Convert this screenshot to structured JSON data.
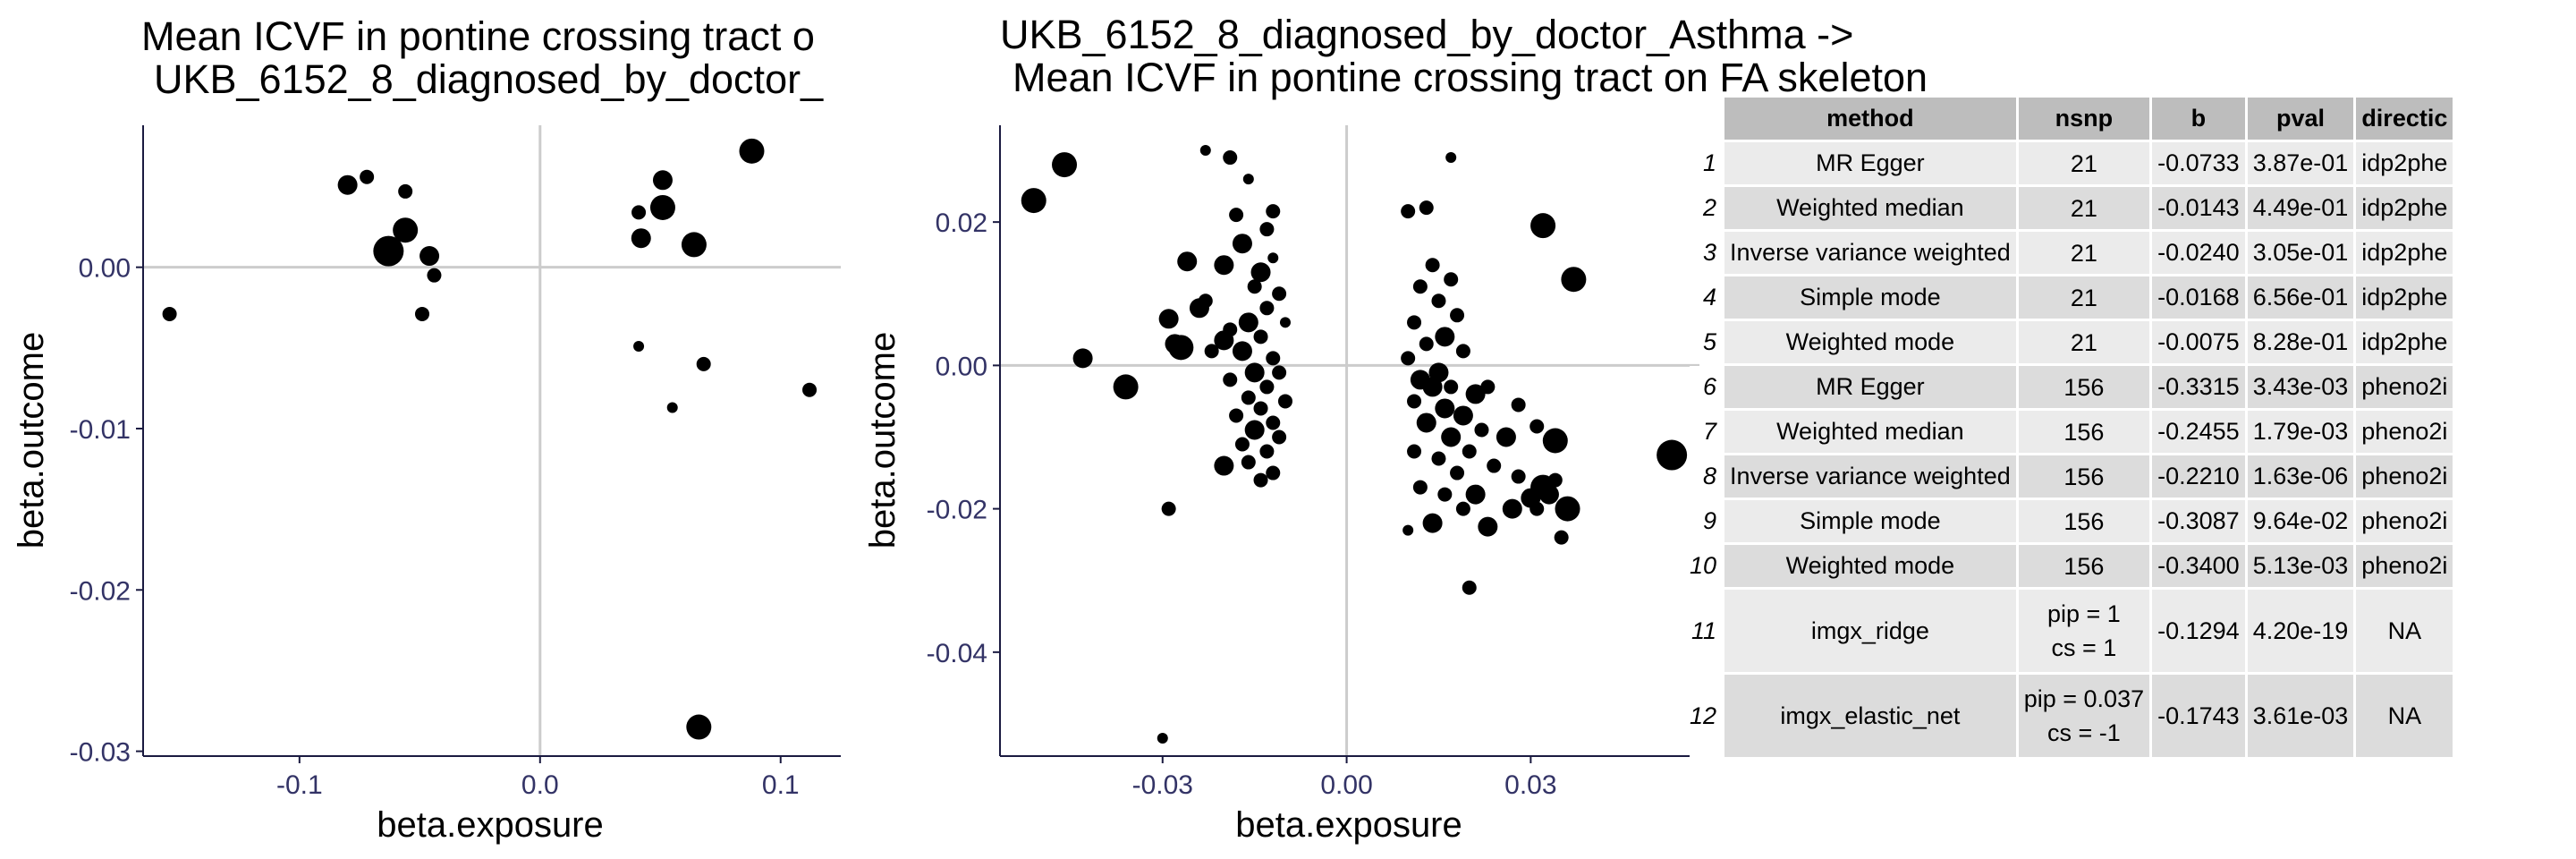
{
  "colors": {
    "point": "#000000",
    "refline": "#cccccc",
    "axis": "#1a1a40",
    "tick_text": "#333366",
    "header_bg": "#bdbdbd",
    "row_odd": "#ebebeb",
    "row_even": "#dcdcdc"
  },
  "chart_data": [
    {
      "type": "scatter",
      "title_lines": [
        "Mean ICVF in pontine crossing tract o",
        "UKB_6152_8_diagnosed_by_doctor_"
      ],
      "xlabel": "beta.exposure",
      "ylabel": "beta.outcome",
      "xlim": [
        -0.165,
        0.125
      ],
      "ylim": [
        -0.0303,
        0.0088
      ],
      "xticks": [
        -0.1,
        0.0,
        0.1
      ],
      "xtick_labels": [
        "-0.1",
        "0.0",
        "0.1"
      ],
      "yticks": [
        -0.03,
        -0.02,
        -0.01,
        0.0
      ],
      "ytick_labels": [
        "-0.03",
        "-0.02",
        "-0.01",
        "0.00"
      ],
      "reference_lines": {
        "x": 0,
        "y": 0
      },
      "grid": false,
      "points": [
        {
          "x": -0.154,
          "y": -0.0029,
          "s": 1
        },
        {
          "x": -0.08,
          "y": 0.0051,
          "s": 2
        },
        {
          "x": -0.072,
          "y": 0.0056,
          "s": 1
        },
        {
          "x": -0.063,
          "y": 0.001,
          "s": 4
        },
        {
          "x": -0.056,
          "y": 0.0023,
          "s": 3
        },
        {
          "x": -0.056,
          "y": 0.0047,
          "s": 1
        },
        {
          "x": -0.046,
          "y": 0.0007,
          "s": 2
        },
        {
          "x": -0.044,
          "y": -0.0005,
          "s": 1
        },
        {
          "x": -0.049,
          "y": -0.0029,
          "s": 1
        },
        {
          "x": 0.041,
          "y": 0.0034,
          "s": 1
        },
        {
          "x": 0.042,
          "y": 0.0018,
          "s": 2
        },
        {
          "x": 0.051,
          "y": 0.0054,
          "s": 2
        },
        {
          "x": 0.051,
          "y": 0.0037,
          "s": 3
        },
        {
          "x": 0.041,
          "y": -0.0049,
          "s": 0
        },
        {
          "x": 0.055,
          "y": -0.0087,
          "s": 0
        },
        {
          "x": 0.064,
          "y": 0.0014,
          "s": 3
        },
        {
          "x": 0.068,
          "y": -0.006,
          "s": 1
        },
        {
          "x": 0.088,
          "y": 0.0072,
          "s": 3
        },
        {
          "x": 0.112,
          "y": -0.0076,
          "s": 1
        },
        {
          "x": 0.066,
          "y": -0.0285,
          "s": 3
        }
      ]
    },
    {
      "type": "scatter",
      "title_lines": [
        "UKB_6152_8_diagnosed_by_doctor_Asthma ->",
        "Mean ICVF in pontine crossing tract on FA skeleton"
      ],
      "xlabel": "beta.exposure",
      "ylabel": "beta.outcome",
      "xlim": [
        -0.0565,
        0.0575
      ],
      "ylim": [
        -0.0545,
        0.0335
      ],
      "xticks": [
        -0.03,
        0.0,
        0.03
      ],
      "xtick_labels": [
        "-0.03",
        "0.00",
        "0.03"
      ],
      "yticks": [
        -0.04,
        -0.02,
        0.0,
        0.02
      ],
      "ytick_labels": [
        "-0.04",
        "-0.02",
        "0.00",
        "0.02"
      ],
      "reference_lines": {
        "x": 0,
        "y": 0
      },
      "grid": false,
      "points": [
        {
          "x": -0.051,
          "y": 0.023,
          "s": 3
        },
        {
          "x": -0.046,
          "y": 0.028,
          "s": 3
        },
        {
          "x": -0.043,
          "y": 0.001,
          "s": 2
        },
        {
          "x": -0.036,
          "y": -0.003,
          "s": 3
        },
        {
          "x": -0.03,
          "y": -0.052,
          "s": 0
        },
        {
          "x": -0.029,
          "y": -0.02,
          "s": 1
        },
        {
          "x": -0.029,
          "y": 0.0065,
          "s": 2
        },
        {
          "x": -0.028,
          "y": 0.003,
          "s": 2
        },
        {
          "x": -0.027,
          "y": 0.0025,
          "s": 3
        },
        {
          "x": -0.026,
          "y": 0.0145,
          "s": 2
        },
        {
          "x": -0.024,
          "y": 0.008,
          "s": 2
        },
        {
          "x": -0.023,
          "y": 0.009,
          "s": 1
        },
        {
          "x": -0.023,
          "y": 0.03,
          "s": 0
        },
        {
          "x": -0.022,
          "y": 0.002,
          "s": 1
        },
        {
          "x": -0.02,
          "y": 0.014,
          "s": 2
        },
        {
          "x": -0.02,
          "y": 0.0035,
          "s": 2
        },
        {
          "x": -0.02,
          "y": -0.014,
          "s": 2
        },
        {
          "x": -0.019,
          "y": 0.029,
          "s": 1
        },
        {
          "x": -0.019,
          "y": 0.005,
          "s": 1
        },
        {
          "x": -0.019,
          "y": -0.002,
          "s": 1
        },
        {
          "x": -0.018,
          "y": -0.007,
          "s": 1
        },
        {
          "x": -0.018,
          "y": 0.021,
          "s": 1
        },
        {
          "x": -0.017,
          "y": 0.017,
          "s": 2
        },
        {
          "x": -0.017,
          "y": 0.002,
          "s": 2
        },
        {
          "x": -0.017,
          "y": -0.011,
          "s": 1
        },
        {
          "x": -0.016,
          "y": 0.026,
          "s": 0
        },
        {
          "x": -0.016,
          "y": 0.006,
          "s": 2
        },
        {
          "x": -0.016,
          "y": -0.0045,
          "s": 1
        },
        {
          "x": -0.016,
          "y": -0.0135,
          "s": 1
        },
        {
          "x": -0.015,
          "y": 0.011,
          "s": 1
        },
        {
          "x": -0.015,
          "y": -0.001,
          "s": 2
        },
        {
          "x": -0.015,
          "y": -0.009,
          "s": 2
        },
        {
          "x": -0.014,
          "y": 0.013,
          "s": 2
        },
        {
          "x": -0.014,
          "y": 0.004,
          "s": 1
        },
        {
          "x": -0.014,
          "y": -0.006,
          "s": 1
        },
        {
          "x": -0.014,
          "y": -0.016,
          "s": 1
        },
        {
          "x": -0.013,
          "y": 0.019,
          "s": 1
        },
        {
          "x": -0.013,
          "y": 0.008,
          "s": 1
        },
        {
          "x": -0.013,
          "y": -0.003,
          "s": 1
        },
        {
          "x": -0.013,
          "y": -0.012,
          "s": 1
        },
        {
          "x": -0.012,
          "y": 0.0215,
          "s": 1
        },
        {
          "x": -0.012,
          "y": 0.015,
          "s": 0
        },
        {
          "x": -0.012,
          "y": 0.001,
          "s": 1
        },
        {
          "x": -0.012,
          "y": -0.008,
          "s": 1
        },
        {
          "x": -0.012,
          "y": -0.015,
          "s": 1
        },
        {
          "x": -0.011,
          "y": 0.01,
          "s": 1
        },
        {
          "x": -0.011,
          "y": -0.001,
          "s": 1
        },
        {
          "x": -0.011,
          "y": -0.01,
          "s": 1
        },
        {
          "x": -0.01,
          "y": 0.006,
          "s": 0
        },
        {
          "x": -0.01,
          "y": -0.005,
          "s": 1
        },
        {
          "x": 0.01,
          "y": 0.0215,
          "s": 1
        },
        {
          "x": 0.01,
          "y": 0.001,
          "s": 1
        },
        {
          "x": 0.01,
          "y": -0.023,
          "s": 0
        },
        {
          "x": 0.011,
          "y": 0.006,
          "s": 1
        },
        {
          "x": 0.011,
          "y": -0.005,
          "s": 1
        },
        {
          "x": 0.011,
          "y": -0.012,
          "s": 1
        },
        {
          "x": 0.012,
          "y": 0.011,
          "s": 1
        },
        {
          "x": 0.012,
          "y": -0.002,
          "s": 2
        },
        {
          "x": 0.012,
          "y": -0.017,
          "s": 1
        },
        {
          "x": 0.013,
          "y": 0.022,
          "s": 1
        },
        {
          "x": 0.013,
          "y": 0.003,
          "s": 1
        },
        {
          "x": 0.013,
          "y": -0.008,
          "s": 2
        },
        {
          "x": 0.014,
          "y": 0.014,
          "s": 1
        },
        {
          "x": 0.014,
          "y": -0.003,
          "s": 2
        },
        {
          "x": 0.014,
          "y": -0.022,
          "s": 2
        },
        {
          "x": 0.015,
          "y": 0.009,
          "s": 1
        },
        {
          "x": 0.015,
          "y": -0.001,
          "s": 2
        },
        {
          "x": 0.015,
          "y": -0.013,
          "s": 1
        },
        {
          "x": 0.016,
          "y": 0.004,
          "s": 2
        },
        {
          "x": 0.016,
          "y": -0.006,
          "s": 2
        },
        {
          "x": 0.016,
          "y": -0.018,
          "s": 1
        },
        {
          "x": 0.017,
          "y": 0.012,
          "s": 1
        },
        {
          "x": 0.017,
          "y": 0.029,
          "s": 0
        },
        {
          "x": 0.017,
          "y": -0.003,
          "s": 1
        },
        {
          "x": 0.017,
          "y": -0.01,
          "s": 2
        },
        {
          "x": 0.018,
          "y": 0.007,
          "s": 1
        },
        {
          "x": 0.018,
          "y": -0.015,
          "s": 1
        },
        {
          "x": 0.019,
          "y": 0.002,
          "s": 1
        },
        {
          "x": 0.019,
          "y": -0.007,
          "s": 2
        },
        {
          "x": 0.019,
          "y": -0.02,
          "s": 1
        },
        {
          "x": 0.02,
          "y": -0.031,
          "s": 1
        },
        {
          "x": 0.02,
          "y": -0.012,
          "s": 1
        },
        {
          "x": 0.021,
          "y": -0.004,
          "s": 2
        },
        {
          "x": 0.021,
          "y": -0.018,
          "s": 2
        },
        {
          "x": 0.022,
          "y": -0.009,
          "s": 1
        },
        {
          "x": 0.023,
          "y": -0.0225,
          "s": 2
        },
        {
          "x": 0.023,
          "y": -0.003,
          "s": 1
        },
        {
          "x": 0.024,
          "y": -0.014,
          "s": 1
        },
        {
          "x": 0.026,
          "y": -0.01,
          "s": 2
        },
        {
          "x": 0.027,
          "y": -0.02,
          "s": 2
        },
        {
          "x": 0.028,
          "y": -0.0055,
          "s": 1
        },
        {
          "x": 0.028,
          "y": -0.0155,
          "s": 1
        },
        {
          "x": 0.03,
          "y": -0.0185,
          "s": 2
        },
        {
          "x": 0.031,
          "y": -0.02,
          "s": 1
        },
        {
          "x": 0.031,
          "y": -0.0085,
          "s": 1
        },
        {
          "x": 0.032,
          "y": 0.0195,
          "s": 3
        },
        {
          "x": 0.032,
          "y": -0.017,
          "s": 3
        },
        {
          "x": 0.033,
          "y": -0.018,
          "s": 2
        },
        {
          "x": 0.034,
          "y": -0.0105,
          "s": 3
        },
        {
          "x": 0.034,
          "y": -0.016,
          "s": 1
        },
        {
          "x": 0.035,
          "y": -0.024,
          "s": 1
        },
        {
          "x": 0.036,
          "y": -0.02,
          "s": 3
        },
        {
          "x": 0.037,
          "y": 0.012,
          "s": 3
        },
        {
          "x": 0.053,
          "y": -0.0125,
          "s": 4
        }
      ]
    }
  ],
  "table": {
    "columns": [
      "method",
      "nsnp",
      "b",
      "pval",
      "directic"
    ],
    "rows": [
      {
        "rownum": "1",
        "method": "MR Egger",
        "nsnp": [
          "21"
        ],
        "b": "-0.0733",
        "pval": "3.87e-01",
        "direction": "idp2phe"
      },
      {
        "rownum": "2",
        "method": "Weighted median",
        "nsnp": [
          "21"
        ],
        "b": "-0.0143",
        "pval": "4.49e-01",
        "direction": "idp2phe"
      },
      {
        "rownum": "3",
        "method": "Inverse variance weighted",
        "nsnp": [
          "21"
        ],
        "b": "-0.0240",
        "pval": "3.05e-01",
        "direction": "idp2phe"
      },
      {
        "rownum": "4",
        "method": "Simple mode",
        "nsnp": [
          "21"
        ],
        "b": "-0.0168",
        "pval": "6.56e-01",
        "direction": "idp2phe"
      },
      {
        "rownum": "5",
        "method": "Weighted mode",
        "nsnp": [
          "21"
        ],
        "b": "-0.0075",
        "pval": "8.28e-01",
        "direction": "idp2phe"
      },
      {
        "rownum": "6",
        "method": "MR Egger",
        "nsnp": [
          "156"
        ],
        "b": "-0.3315",
        "pval": "3.43e-03",
        "direction": "pheno2i"
      },
      {
        "rownum": "7",
        "method": "Weighted median",
        "nsnp": [
          "156"
        ],
        "b": "-0.2455",
        "pval": "1.79e-03",
        "direction": "pheno2i"
      },
      {
        "rownum": "8",
        "method": "Inverse variance weighted",
        "nsnp": [
          "156"
        ],
        "b": "-0.2210",
        "pval": "1.63e-06",
        "direction": "pheno2i"
      },
      {
        "rownum": "9",
        "method": "Simple mode",
        "nsnp": [
          "156"
        ],
        "b": "-0.3087",
        "pval": "9.64e-02",
        "direction": "pheno2i"
      },
      {
        "rownum": "10",
        "method": "Weighted mode",
        "nsnp": [
          "156"
        ],
        "b": "-0.3400",
        "pval": "5.13e-03",
        "direction": "pheno2i"
      },
      {
        "rownum": "11",
        "method": "imgx_ridge",
        "nsnp": [
          "pip = 1",
          "cs = 1"
        ],
        "b": "-0.1294",
        "pval": "4.20e-19",
        "direction": "NA"
      },
      {
        "rownum": "12",
        "method": "imgx_elastic_net",
        "nsnp": [
          "pip = 0.037",
          "cs = -1"
        ],
        "b": "-0.1743",
        "pval": "3.61e-03",
        "direction": "NA"
      }
    ]
  }
}
